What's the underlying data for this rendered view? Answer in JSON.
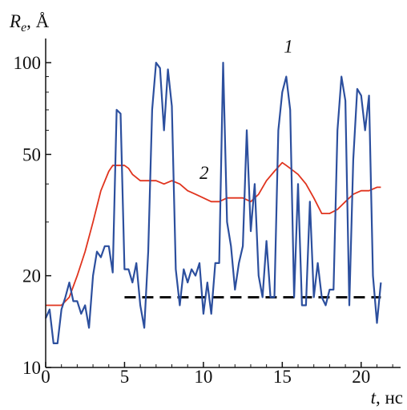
{
  "chart_data": {
    "type": "line",
    "title": "",
    "xlabel": {
      "symbol": "t",
      "unit": ", нс"
    },
    "ylabel": {
      "symbol": "R",
      "subscript": "e",
      "unit": ", Å"
    },
    "xlim": [
      0,
      22.5
    ],
    "ylim": [
      10,
      120
    ],
    "yscale": "log",
    "xticks": [
      0,
      5,
      10,
      15,
      20
    ],
    "yticks": [
      10,
      20,
      50,
      100
    ],
    "grid": false,
    "series": [
      {
        "name": "1",
        "color": "#2c4f9e",
        "x": [
          0.0,
          0.25,
          0.5,
          0.75,
          1.0,
          1.25,
          1.5,
          1.75,
          2.0,
          2.25,
          2.5,
          2.75,
          3.0,
          3.25,
          3.5,
          3.75,
          4.0,
          4.25,
          4.5,
          4.75,
          5.0,
          5.25,
          5.5,
          5.75,
          6.0,
          6.25,
          6.5,
          6.75,
          7.0,
          7.25,
          7.5,
          7.75,
          8.0,
          8.25,
          8.5,
          8.75,
          9.0,
          9.25,
          9.5,
          9.75,
          10.0,
          10.25,
          10.5,
          10.75,
          11.0,
          11.25,
          11.5,
          11.75,
          12.0,
          12.25,
          12.5,
          12.75,
          13.0,
          13.25,
          13.5,
          13.75,
          14.0,
          14.25,
          14.5,
          14.75,
          15.0,
          15.25,
          15.5,
          15.75,
          16.0,
          16.25,
          16.5,
          16.75,
          17.0,
          17.25,
          17.5,
          17.75,
          18.0,
          18.25,
          18.5,
          18.75,
          19.0,
          19.25,
          19.5,
          19.75,
          20.0,
          20.25,
          20.5,
          20.75,
          21.0,
          21.25
        ],
        "y": [
          14.5,
          15.5,
          12,
          12,
          15.5,
          17,
          19,
          16.5,
          16.5,
          15,
          16,
          13.5,
          20,
          24,
          23,
          25,
          25,
          20.5,
          70,
          68,
          21,
          21,
          19,
          22,
          16,
          13.5,
          24,
          70,
          100,
          96,
          60,
          95,
          72,
          21,
          16,
          21,
          19,
          21,
          20,
          22,
          15,
          19,
          15,
          22,
          22,
          100,
          30,
          25,
          18,
          22,
          25,
          60,
          28,
          40,
          20,
          17,
          26,
          17,
          17,
          60,
          80,
          90,
          70,
          17,
          40,
          16,
          16,
          35,
          17,
          22,
          17,
          16,
          18,
          18,
          60,
          90,
          75,
          16,
          48,
          82,
          78,
          60,
          78,
          20,
          14,
          19
        ]
      },
      {
        "name": "2",
        "color": "#e0341e",
        "x": [
          0.0,
          1.0,
          1.5,
          2.0,
          2.5,
          3.0,
          3.5,
          4.0,
          4.25,
          4.5,
          5.0,
          5.25,
          5.5,
          6.0,
          6.5,
          7.0,
          7.5,
          8.0,
          8.5,
          9.0,
          9.5,
          10.0,
          10.5,
          11.0,
          11.5,
          12.0,
          12.5,
          13.0,
          13.5,
          14.0,
          14.5,
          15.0,
          15.25,
          15.5,
          16.0,
          16.5,
          17.0,
          17.5,
          18.0,
          18.5,
          19.0,
          19.5,
          20.0,
          20.5,
          21.0,
          21.25
        ],
        "y": [
          16,
          16,
          17,
          20,
          24,
          30,
          38,
          44,
          46,
          46,
          46,
          45,
          43,
          41,
          41,
          41,
          40,
          41,
          40,
          38,
          37,
          36,
          35,
          35,
          36,
          36,
          36,
          35,
          37,
          41,
          44,
          47,
          46,
          45,
          43,
          40,
          36,
          32,
          32,
          33,
          35,
          37,
          38,
          38,
          39,
          39
        ]
      }
    ],
    "reference_lines": [
      {
        "type": "horizontal",
        "y": 17,
        "x_range": [
          5,
          21.25
        ],
        "style": "dashed",
        "color": "#111111"
      }
    ]
  }
}
